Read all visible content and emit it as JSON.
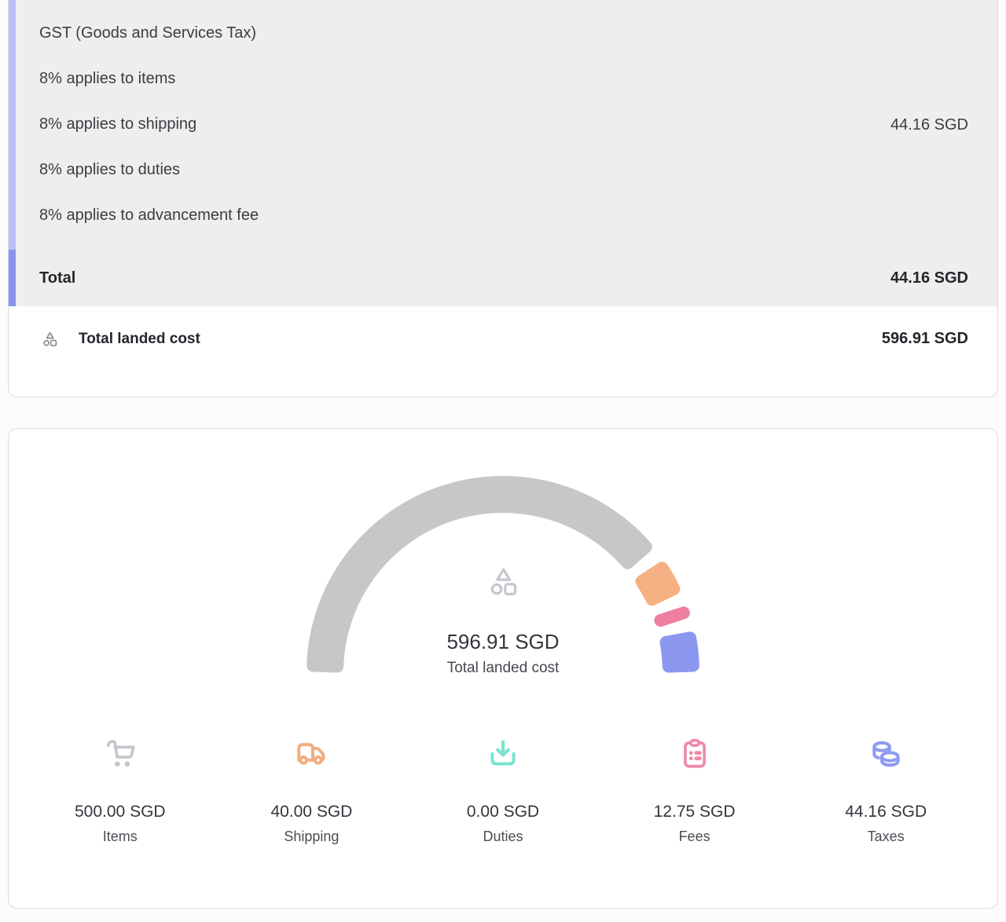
{
  "breakdown": {
    "tax_group": {
      "title": "GST (Goods and Services Tax)",
      "lines": [
        "8% applies to items",
        "8% applies to shipping",
        "8% applies to duties",
        "8% applies to advancement fee"
      ],
      "amount": "44.16 SGD"
    },
    "total": {
      "label": "Total",
      "amount": "44.16 SGD"
    },
    "landed": {
      "label": "Total landed cost",
      "amount": "596.91 SGD"
    }
  },
  "chart_data": {
    "type": "pie",
    "subtype": "semicircle-gauge",
    "title": "Total landed cost",
    "center_value": "596.91 SGD",
    "center_label": "Total landed cost",
    "categories": [
      "Items",
      "Shipping",
      "Duties",
      "Fees",
      "Taxes"
    ],
    "values": [
      500.0,
      40.0,
      0.0,
      12.75,
      44.16
    ],
    "unit": "SGD",
    "total": 596.91,
    "segment_colors": [
      "#c6c7c9",
      "#f5b183",
      "#7be2d0",
      "#ee7f9e",
      "#8b97ef"
    ],
    "start_angle_deg": 180,
    "end_angle_deg": 0,
    "gap_deg": 4,
    "legend_position": "bottom"
  },
  "stats": [
    {
      "icon": "cart-icon",
      "value": "500.00 SGD",
      "label": "Items",
      "color": "#c4c6cb"
    },
    {
      "icon": "truck-icon",
      "value": "40.00 SGD",
      "label": "Shipping",
      "color": "#f2ad80"
    },
    {
      "icon": "download-icon",
      "value": "0.00 SGD",
      "label": "Duties",
      "color": "#7be2d0"
    },
    {
      "icon": "clipboard-icon",
      "value": "12.75 SGD",
      "label": "Fees",
      "color": "#ee8aa6"
    },
    {
      "icon": "coins-icon",
      "value": "44.16 SGD",
      "label": "Taxes",
      "color": "#8e9bf0"
    }
  ],
  "colors": {
    "panel_bg": "#eeeeee",
    "accent_light": "#b9c0f7",
    "accent_dark": "#8694f0",
    "card_border": "#dcdcdd"
  }
}
